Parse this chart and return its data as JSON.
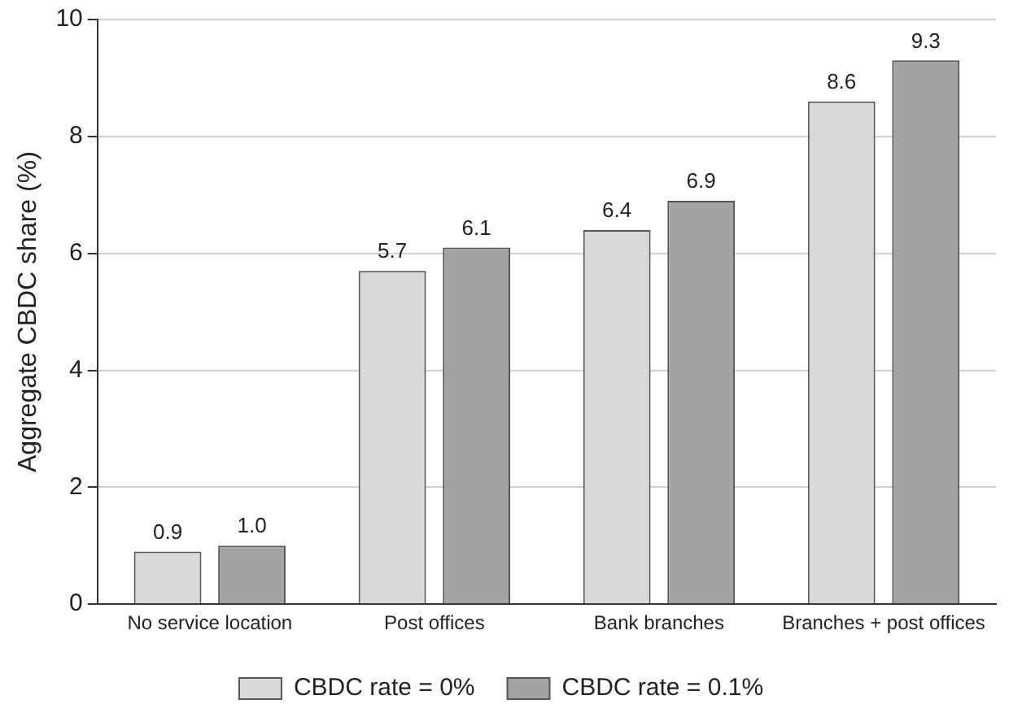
{
  "chart_data": {
    "type": "bar",
    "ylabel": "Aggregate CBDC share (%)",
    "categories": [
      "No service location",
      "Post offices",
      "Bank branches",
      "Branches + post offices"
    ],
    "series": [
      {
        "name": "CBDC rate = 0%",
        "color": "#d9d9d9",
        "values": [
          0.9,
          5.7,
          6.4,
          8.6
        ],
        "value_labels": [
          "0.9",
          "5.7",
          "6.4",
          "8.6"
        ]
      },
      {
        "name": "CBDC rate = 0.1%",
        "color": "#a3a3a3",
        "values": [
          1.0,
          6.1,
          6.9,
          9.3
        ],
        "value_labels": [
          "1.0",
          "6.1",
          "6.9",
          "9.3"
        ]
      }
    ],
    "ylim": [
      0,
      10
    ],
    "yticks": [
      0,
      2,
      4,
      6,
      8,
      10
    ],
    "grid": "y",
    "legend": "bottom"
  }
}
